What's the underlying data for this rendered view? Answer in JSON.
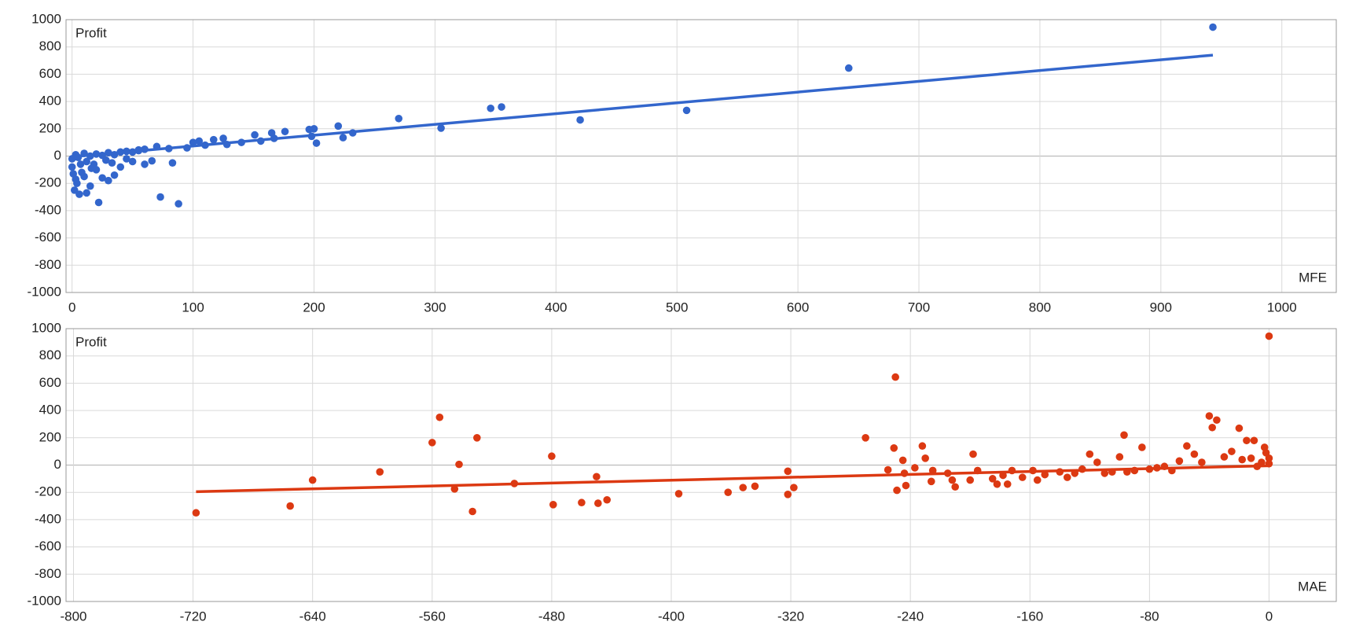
{
  "chart_data": [
    {
      "type": "scatter",
      "y_label": "Profit",
      "x_label": "MFE",
      "color": "#3366cc",
      "xlim": [
        -5,
        1045
      ],
      "ylim": [
        -1000,
        1000
      ],
      "xticks": [
        0,
        100,
        200,
        300,
        400,
        500,
        600,
        700,
        800,
        900,
        1000
      ],
      "yticks": [
        -1000,
        -800,
        -600,
        -400,
        -200,
        0,
        200,
        400,
        600,
        800,
        1000
      ],
      "grid": true,
      "x": [
        943,
        642,
        508,
        420,
        355,
        346,
        305,
        270,
        232,
        224,
        220,
        202,
        200,
        198,
        196,
        176,
        167,
        165,
        156,
        151,
        140,
        128,
        125,
        117,
        110,
        105,
        100,
        95,
        88,
        83,
        80,
        73,
        70,
        66,
        60,
        55,
        50,
        45,
        40,
        35,
        30,
        25,
        22,
        20,
        18,
        15,
        12,
        10,
        8,
        6,
        4,
        2,
        1,
        0,
        0,
        3,
        5,
        10,
        15,
        20,
        25,
        30,
        35,
        40,
        45,
        50,
        55,
        60,
        28,
        33,
        12,
        7,
        16,
        3
      ],
      "y": [
        945,
        645,
        335,
        265,
        360,
        350,
        205,
        275,
        170,
        135,
        220,
        95,
        200,
        145,
        195,
        180,
        130,
        170,
        110,
        155,
        100,
        85,
        130,
        120,
        80,
        110,
        100,
        60,
        -350,
        -50,
        55,
        -300,
        70,
        -35,
        50,
        40,
        30,
        -20,
        -80,
        -140,
        -180,
        -160,
        -340,
        -100,
        -60,
        -220,
        -270,
        -150,
        -120,
        -280,
        -200,
        -250,
        -130,
        -80,
        -20,
        10,
        -10,
        20,
        0,
        15,
        5,
        25,
        10,
        30,
        35,
        -40,
        45,
        -60,
        -30,
        -50,
        -40,
        -60,
        -90,
        -170
      ],
      "trendline": {
        "color": "#3366cc",
        "x": [
          0,
          943
        ],
        "y": [
          -5,
          740
        ]
      }
    },
    {
      "type": "scatter",
      "y_label": "Profit",
      "x_label": "MAE",
      "color": "#dc3912",
      "xlim": [
        -805,
        45
      ],
      "ylim": [
        -1000,
        1000
      ],
      "xticks": [
        -800,
        -720,
        -640,
        -560,
        -480,
        -400,
        -320,
        -240,
        -160,
        -80,
        0
      ],
      "yticks": [
        -1000,
        -800,
        -600,
        -400,
        -200,
        0,
        200,
        400,
        600,
        800,
        1000
      ],
      "grid": true,
      "x": [
        -718,
        -655,
        -640,
        -595,
        -560,
        -555,
        -545,
        -542,
        -533,
        -530,
        -505,
        -480,
        -479,
        -460,
        -450,
        -449,
        -443,
        -395,
        -362,
        -352,
        -344,
        -322,
        -322,
        -318,
        -270,
        -255,
        -251,
        -250,
        -249,
        -245,
        -244,
        -243,
        -237,
        -232,
        -230,
        -226,
        -225,
        -215,
        -212,
        -210,
        -200,
        -198,
        -195,
        -185,
        -182,
        -178,
        -175,
        -172,
        -165,
        -158,
        -155,
        -150,
        -140,
        -135,
        -125,
        -120,
        -115,
        -110,
        -100,
        -97,
        -95,
        -85,
        -80,
        -70,
        -60,
        -55,
        -50,
        -45,
        -40,
        -38,
        -35,
        -30,
        -25,
        -20,
        -18,
        -15,
        -12,
        -10,
        -5,
        -3,
        0,
        0,
        0,
        -2,
        -8,
        -65,
        -75,
        -90,
        -105,
        -130
      ],
      "y": [
        -350,
        -300,
        -110,
        -50,
        165,
        350,
        -175,
        5,
        -340,
        200,
        -135,
        65,
        -290,
        -275,
        -85,
        -280,
        -255,
        -210,
        -200,
        -165,
        -155,
        -45,
        -215,
        -165,
        200,
        -35,
        125,
        645,
        -185,
        35,
        -60,
        -150,
        -20,
        140,
        50,
        -120,
        -40,
        -60,
        -110,
        -160,
        -110,
        80,
        -40,
        -100,
        -140,
        -75,
        -140,
        -40,
        -90,
        -40,
        -110,
        -70,
        -50,
        -90,
        -30,
        80,
        20,
        -60,
        60,
        220,
        -50,
        130,
        -30,
        -10,
        30,
        140,
        80,
        20,
        360,
        275,
        330,
        60,
        100,
        270,
        40,
        180,
        50,
        180,
        20,
        130,
        945,
        50,
        10,
        90,
        -10,
        -40,
        -20,
        -40,
        -50,
        -60
      ],
      "trendline": {
        "color": "#dc3912",
        "x": [
          -718,
          0
        ],
        "y": [
          -195,
          -5
        ]
      }
    }
  ]
}
